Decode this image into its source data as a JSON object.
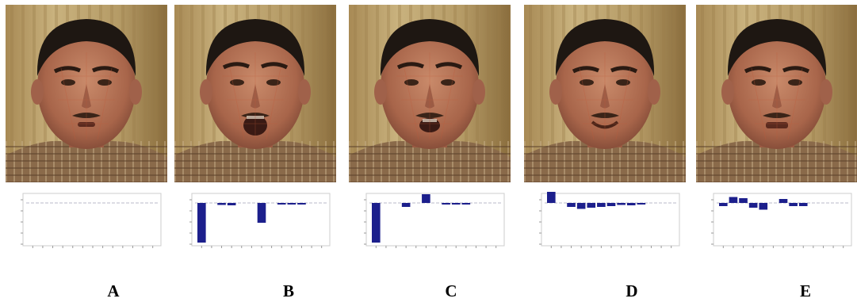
{
  "figure": {
    "panels": [
      {
        "label": "A",
        "bars": [
          0,
          0,
          0,
          0,
          0,
          0,
          0,
          0,
          0,
          0,
          0,
          0,
          0
        ]
      },
      {
        "label": "B",
        "bars": [
          -1.0,
          0,
          -0.05,
          -0.06,
          0,
          0,
          -0.5,
          0,
          -0.04,
          -0.04,
          -0.03,
          0,
          0
        ]
      },
      {
        "label": "C",
        "bars": [
          -1.0,
          0,
          0,
          -0.1,
          0,
          0.22,
          0,
          -0.03,
          -0.03,
          -0.03,
          0,
          0,
          0
        ]
      },
      {
        "label": "D",
        "bars": [
          0.28,
          0,
          -0.1,
          -0.15,
          -0.12,
          -0.1,
          -0.08,
          -0.05,
          -0.06,
          -0.04,
          0,
          0,
          0
        ]
      },
      {
        "label": "E",
        "bars": [
          -0.08,
          0.15,
          0.12,
          -0.12,
          -0.17,
          0,
          0.1,
          -0.08,
          -0.08,
          0,
          0,
          0,
          0
        ]
      }
    ],
    "bar_color": "#1c1f8c"
  }
}
